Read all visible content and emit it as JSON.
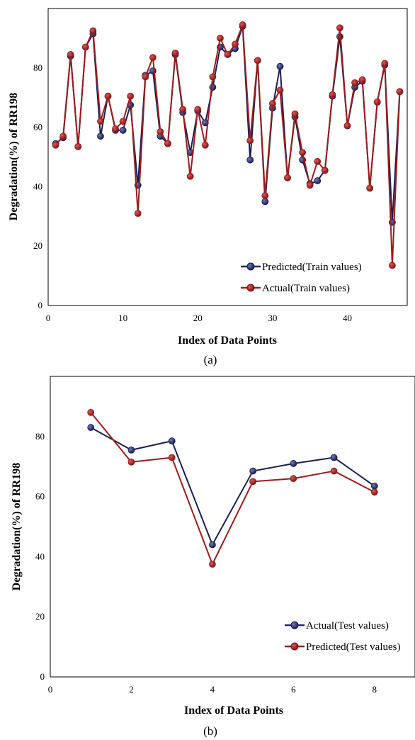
{
  "colors": {
    "navy": "#1b1f52",
    "darkred": "#9b1c1c",
    "legend_navy": "#1f2a66"
  },
  "chart_data": [
    {
      "id": "a",
      "type": "line",
      "caption": "(a)",
      "xlabel": "Index of Data Points",
      "ylabel": "Degradation(%)  of RR198",
      "xlim": [
        0,
        48
      ],
      "ylim": [
        0,
        100
      ],
      "xticks": [
        0,
        10,
        20,
        30,
        40
      ],
      "yticks": [
        0,
        20,
        40,
        60,
        80
      ],
      "grid": false,
      "legend_position": "bottom-right",
      "x": [
        1,
        2,
        3,
        4,
        5,
        6,
        7,
        8,
        9,
        10,
        11,
        12,
        13,
        14,
        15,
        16,
        17,
        18,
        19,
        20,
        21,
        22,
        23,
        24,
        25,
        26,
        27,
        28,
        29,
        30,
        31,
        32,
        33,
        34,
        35,
        36,
        37,
        38,
        39,
        40,
        41,
        42,
        43,
        44,
        45,
        46,
        47
      ],
      "series": [
        {
          "name": "Predicted(Train values)",
          "color_key": "navy",
          "draw_order": 1,
          "values": [
            54.5,
            56.5,
            84,
            53.5,
            87,
            91.5,
            57,
            70.5,
            59,
            59,
            67.5,
            40.5,
            77.5,
            79,
            57,
            54.5,
            84.5,
            65,
            51.5,
            65.5,
            61.5,
            73.5,
            87,
            84.5,
            86.5,
            94,
            49,
            82.5,
            35,
            66.5,
            80.5,
            43,
            63.5,
            49,
            41,
            42,
            45.5,
            70.5,
            90.5,
            60.5,
            73.5,
            75.5,
            39.5,
            68.5,
            81,
            28,
            72
          ]
        },
        {
          "name": "Actual(Train values)",
          "color_key": "darkred",
          "draw_order": 2,
          "values": [
            54,
            57,
            84.5,
            53.5,
            87,
            92.5,
            62,
            70.5,
            59.5,
            62,
            70.5,
            31,
            77,
            83.5,
            58.5,
            54.5,
            85,
            66,
            43.5,
            66,
            54,
            77,
            90,
            84.5,
            88,
            94.5,
            55.5,
            82.5,
            37,
            68,
            72.5,
            43,
            64.5,
            51.5,
            40.5,
            48.5,
            45.5,
            71,
            93.5,
            60.5,
            75,
            76,
            39.5,
            68.5,
            81.5,
            13.5,
            72
          ]
        }
      ]
    },
    {
      "id": "b",
      "type": "line",
      "caption": "(b)",
      "xlabel": "Index of Data Points",
      "ylabel": "Degradation(%)  of RR198",
      "xlim": [
        0,
        9
      ],
      "ylim": [
        0,
        100
      ],
      "xticks": [
        0,
        2,
        4,
        6,
        8
      ],
      "yticks": [
        0,
        20,
        40,
        60,
        80
      ],
      "grid": false,
      "legend_position": "bottom-right",
      "x": [
        1,
        2,
        3,
        4,
        5,
        6,
        7,
        8
      ],
      "series": [
        {
          "name": "Actual(Test values)",
          "color_key": "navy",
          "draw_order": 1,
          "values": [
            83,
            75.5,
            78.5,
            44,
            68.5,
            71,
            73,
            63.5
          ]
        },
        {
          "name": "Predicted(Test values)",
          "color_key": "darkred",
          "draw_order": 2,
          "values": [
            88,
            71.5,
            73,
            37.5,
            65,
            66,
            68.5,
            61.5
          ]
        }
      ]
    }
  ]
}
